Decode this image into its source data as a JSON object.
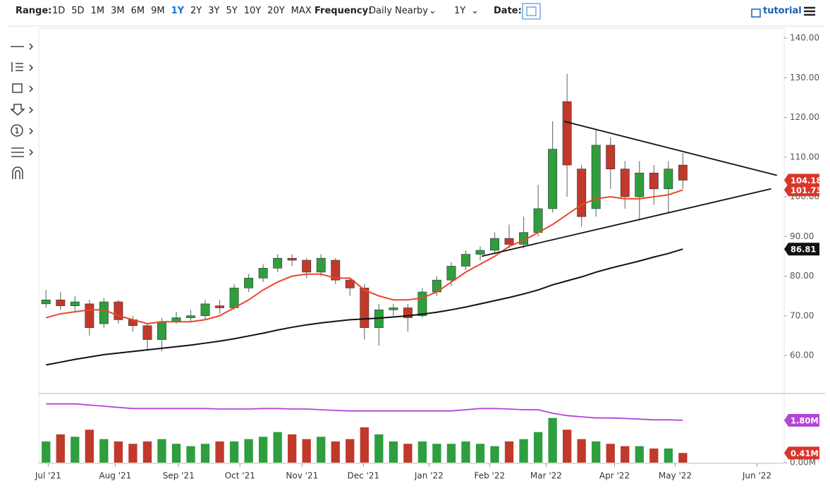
{
  "toolbar": {
    "range_label": "Range:",
    "ranges": [
      "1D",
      "5D",
      "1M",
      "3M",
      "6M",
      "9M",
      "1Y",
      "2Y",
      "3Y",
      "5Y",
      "10Y",
      "20Y",
      "MAX"
    ],
    "active_range": "1Y",
    "frequency_label": "Frequency:",
    "frequency": "Daily Nearby",
    "period": "1Y",
    "date_label": "Date:",
    "tutorial": "tutorial",
    "tool_number": "1"
  },
  "chart_data": {
    "type": "candlestick",
    "up_color": "#2e9e3e",
    "down_color": "#c0392b",
    "open": [
      73,
      74,
      72.5,
      73,
      68,
      73.5,
      69,
      67.5,
      64,
      68.5,
      69.5,
      70,
      72.5,
      72,
      77,
      79.5,
      82,
      84.5,
      84,
      81,
      84,
      79,
      77,
      67,
      71.5,
      72,
      70,
      76,
      79,
      82.5,
      85.5,
      86.5,
      89.5,
      88,
      91,
      97,
      124,
      107,
      97,
      113,
      107,
      100,
      106,
      102,
      108
    ],
    "high": [
      76.5,
      76,
      75,
      74,
      74.5,
      74,
      70,
      68,
      69.5,
      71,
      71.5,
      74,
      74,
      78,
      80.5,
      83,
      85.5,
      85.5,
      84.5,
      85.5,
      84.5,
      79.5,
      78,
      73,
      73,
      73,
      77,
      80,
      83.5,
      86.5,
      87.5,
      91,
      93,
      95,
      103,
      119,
      131,
      108,
      117,
      115,
      109,
      109,
      108,
      109,
      111
    ],
    "low": [
      72,
      71.5,
      71,
      65,
      67,
      68,
      66,
      61.5,
      61,
      68,
      68.5,
      69,
      70.5,
      71.5,
      76,
      78.5,
      81,
      82.5,
      79.5,
      80,
      78,
      75,
      64,
      62.5,
      70,
      66,
      69.5,
      75,
      77.5,
      81.5,
      84,
      85.5,
      87,
      87,
      90,
      96,
      100,
      92.5,
      95,
      102,
      97,
      94,
      98,
      96,
      102
    ],
    "close": [
      74,
      72.5,
      73.5,
      67,
      73.5,
      69,
      67.5,
      64,
      68.5,
      69.5,
      70,
      73,
      72,
      77,
      79.5,
      82,
      84.5,
      84,
      81,
      84.5,
      79,
      77,
      67,
      71.5,
      72,
      69.5,
      76,
      79,
      82.5,
      85.5,
      86.5,
      89.5,
      88,
      91,
      97,
      112,
      108,
      95,
      113,
      107,
      100,
      106,
      102,
      107,
      104.18
    ],
    "overlays": [
      {
        "color": "#e8472c",
        "values": [
          69.5,
          70.5,
          71,
          71.5,
          71.5,
          70,
          69,
          68,
          68.5,
          68.5,
          68.5,
          69,
          70,
          72,
          74,
          76.5,
          78.5,
          80,
          80.5,
          80.5,
          79.5,
          79.5,
          76.5,
          75,
          74,
          74,
          74.5,
          76,
          78.5,
          81,
          83,
          85,
          87.5,
          89,
          91,
          93,
          95.5,
          98,
          99.5,
          100,
          99.5,
          99.5,
          100,
          100.5,
          101.73
        ]
      },
      {
        "color": "#111111",
        "values": [
          57.6,
          58.3,
          59,
          59.6,
          60.2,
          60.6,
          61,
          61.4,
          61.8,
          62.2,
          62.6,
          63.1,
          63.6,
          64.2,
          64.9,
          65.6,
          66.4,
          67.1,
          67.7,
          68.2,
          68.6,
          69,
          69.2,
          69.4,
          69.7,
          70,
          70.4,
          70.9,
          71.5,
          72.2,
          73,
          73.8,
          74.6,
          75.5,
          76.5,
          77.8,
          78.8,
          79.8,
          81,
          82,
          82.9,
          83.8,
          84.8,
          85.7,
          86.81
        ]
      }
    ],
    "trendlines": [
      {
        "x": [
          35.8,
          50.5
        ],
        "y": [
          119,
          105.4
        ]
      },
      {
        "x": [
          30.1,
          50.1
        ],
        "y": [
          85,
          102
        ]
      }
    ],
    "xlim": [
      -0.5,
      51
    ],
    "xticks": [
      {
        "value": 0.15,
        "label": "Jul '21"
      },
      {
        "value": 4.78,
        "label": "Aug '21"
      },
      {
        "value": 9.16,
        "label": "Sep '21"
      },
      {
        "value": 13.4,
        "label": "Oct '21"
      },
      {
        "value": 17.69,
        "label": "Nov '21"
      },
      {
        "value": 21.93,
        "label": "Dec '21"
      },
      {
        "value": 26.46,
        "label": "Jan '22"
      },
      {
        "value": 30.65,
        "label": "Feb '22"
      },
      {
        "value": 34.55,
        "label": "Mar '22"
      },
      {
        "value": 39.28,
        "label": "Apr '22"
      },
      {
        "value": 43.47,
        "label": "May '22"
      },
      {
        "value": 49.12,
        "label": "Jun '22"
      }
    ],
    "ylim": [
      50.4,
      142.5
    ],
    "yticks": [
      {
        "value": 60,
        "label": "60.00"
      },
      {
        "value": 70,
        "label": "70.00"
      },
      {
        "value": 80,
        "label": "80.00"
      },
      {
        "value": 90,
        "label": "90.00"
      },
      {
        "value": 100,
        "label": "100.00"
      },
      {
        "value": 110,
        "label": "110.00"
      },
      {
        "value": 120,
        "label": "120.00"
      },
      {
        "value": 130,
        "label": "130.00"
      },
      {
        "value": 140,
        "label": "140.00"
      }
    ],
    "price_badges": [
      {
        "value": 101.73,
        "color": "#d9352b"
      },
      {
        "value": 104.18,
        "color": "#d9352b"
      },
      {
        "value": 86.81,
        "color": "#111111"
      }
    ],
    "volume": {
      "values": [
        0.9,
        1.2,
        1.1,
        1.4,
        1.0,
        0.9,
        0.8,
        0.9,
        1.0,
        0.8,
        0.7,
        0.8,
        0.9,
        0.9,
        1.0,
        1.1,
        1.3,
        1.2,
        1.0,
        1.1,
        0.9,
        1.0,
        1.5,
        1.2,
        0.9,
        0.8,
        0.9,
        0.8,
        0.8,
        0.9,
        0.8,
        0.7,
        0.9,
        1.0,
        1.3,
        1.9,
        1.4,
        1.0,
        0.9,
        0.8,
        0.7,
        0.7,
        0.6,
        0.6,
        0.41
      ],
      "ma_color": "#b445d6",
      "ma_values": [
        2.5,
        2.5,
        2.5,
        2.45,
        2.4,
        2.35,
        2.3,
        2.3,
        2.3,
        2.3,
        2.3,
        2.3,
        2.28,
        2.28,
        2.28,
        2.3,
        2.3,
        2.28,
        2.28,
        2.25,
        2.22,
        2.2,
        2.2,
        2.2,
        2.2,
        2.2,
        2.2,
        2.2,
        2.2,
        2.25,
        2.3,
        2.3,
        2.28,
        2.25,
        2.25,
        2.1,
        2.0,
        1.95,
        1.9,
        1.9,
        1.88,
        1.85,
        1.82,
        1.82,
        1.8
      ],
      "ylim": [
        0,
        2.88
      ],
      "yticks": [
        {
          "value": 0,
          "label": "0.00M"
        }
      ],
      "badges": [
        {
          "value": 1.8,
          "label": "1.80M",
          "color": "#b445d6"
        },
        {
          "value": 0.41,
          "label": "0.41M",
          "color": "#d9352b"
        }
      ]
    }
  }
}
